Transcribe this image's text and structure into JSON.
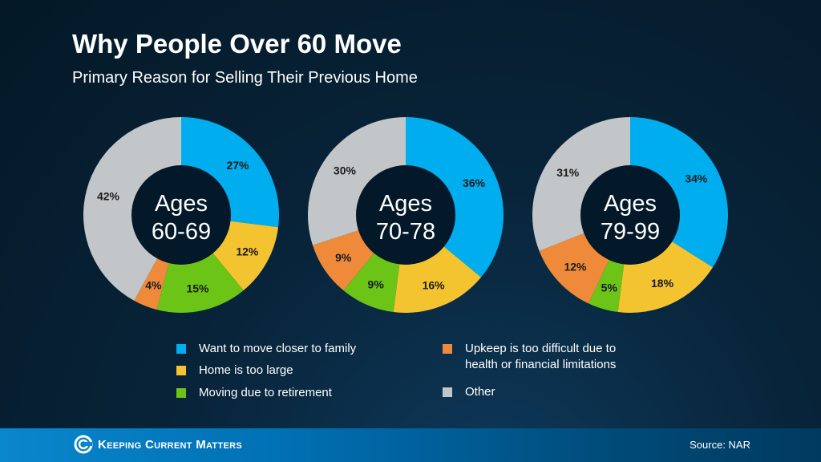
{
  "chart_data": {
    "type": "pie",
    "title": "Why People Over 60 Move",
    "subtitle": "Primary Reason for Selling Their Previous Home",
    "categories": [
      "Want to move closer to family",
      "Home is too large",
      "Moving due to retirement",
      "Upkeep is too difficult due to health or financial limitations",
      "Other"
    ],
    "colors": [
      "#00aeef",
      "#f4c430",
      "#6cc417",
      "#ee8a3a",
      "#c3c6c8"
    ],
    "legend_placement": "bottom",
    "charts": [
      {
        "label_line1": "Ages",
        "label_line2": "60-69",
        "values": [
          27,
          12,
          15,
          4,
          42
        ]
      },
      {
        "label_line1": "Ages",
        "label_line2": "70-78",
        "values": [
          36,
          16,
          9,
          9,
          30
        ]
      },
      {
        "label_line1": "Ages",
        "label_line2": "79-99",
        "values": [
          34,
          18,
          5,
          12,
          31
        ]
      }
    ]
  },
  "legend": {
    "items": [
      {
        "line1": "Want to move closer to family",
        "line2": ""
      },
      {
        "line1": "Home is too large",
        "line2": ""
      },
      {
        "line1": "Moving due to retirement",
        "line2": ""
      },
      {
        "line1": "Upkeep is too difficult due to",
        "line2": "health or financial limitations"
      },
      {
        "line1": "Other",
        "line2": ""
      }
    ]
  },
  "footer": {
    "brand": "Keeping Current Matters",
    "source": "Source: NAR"
  }
}
